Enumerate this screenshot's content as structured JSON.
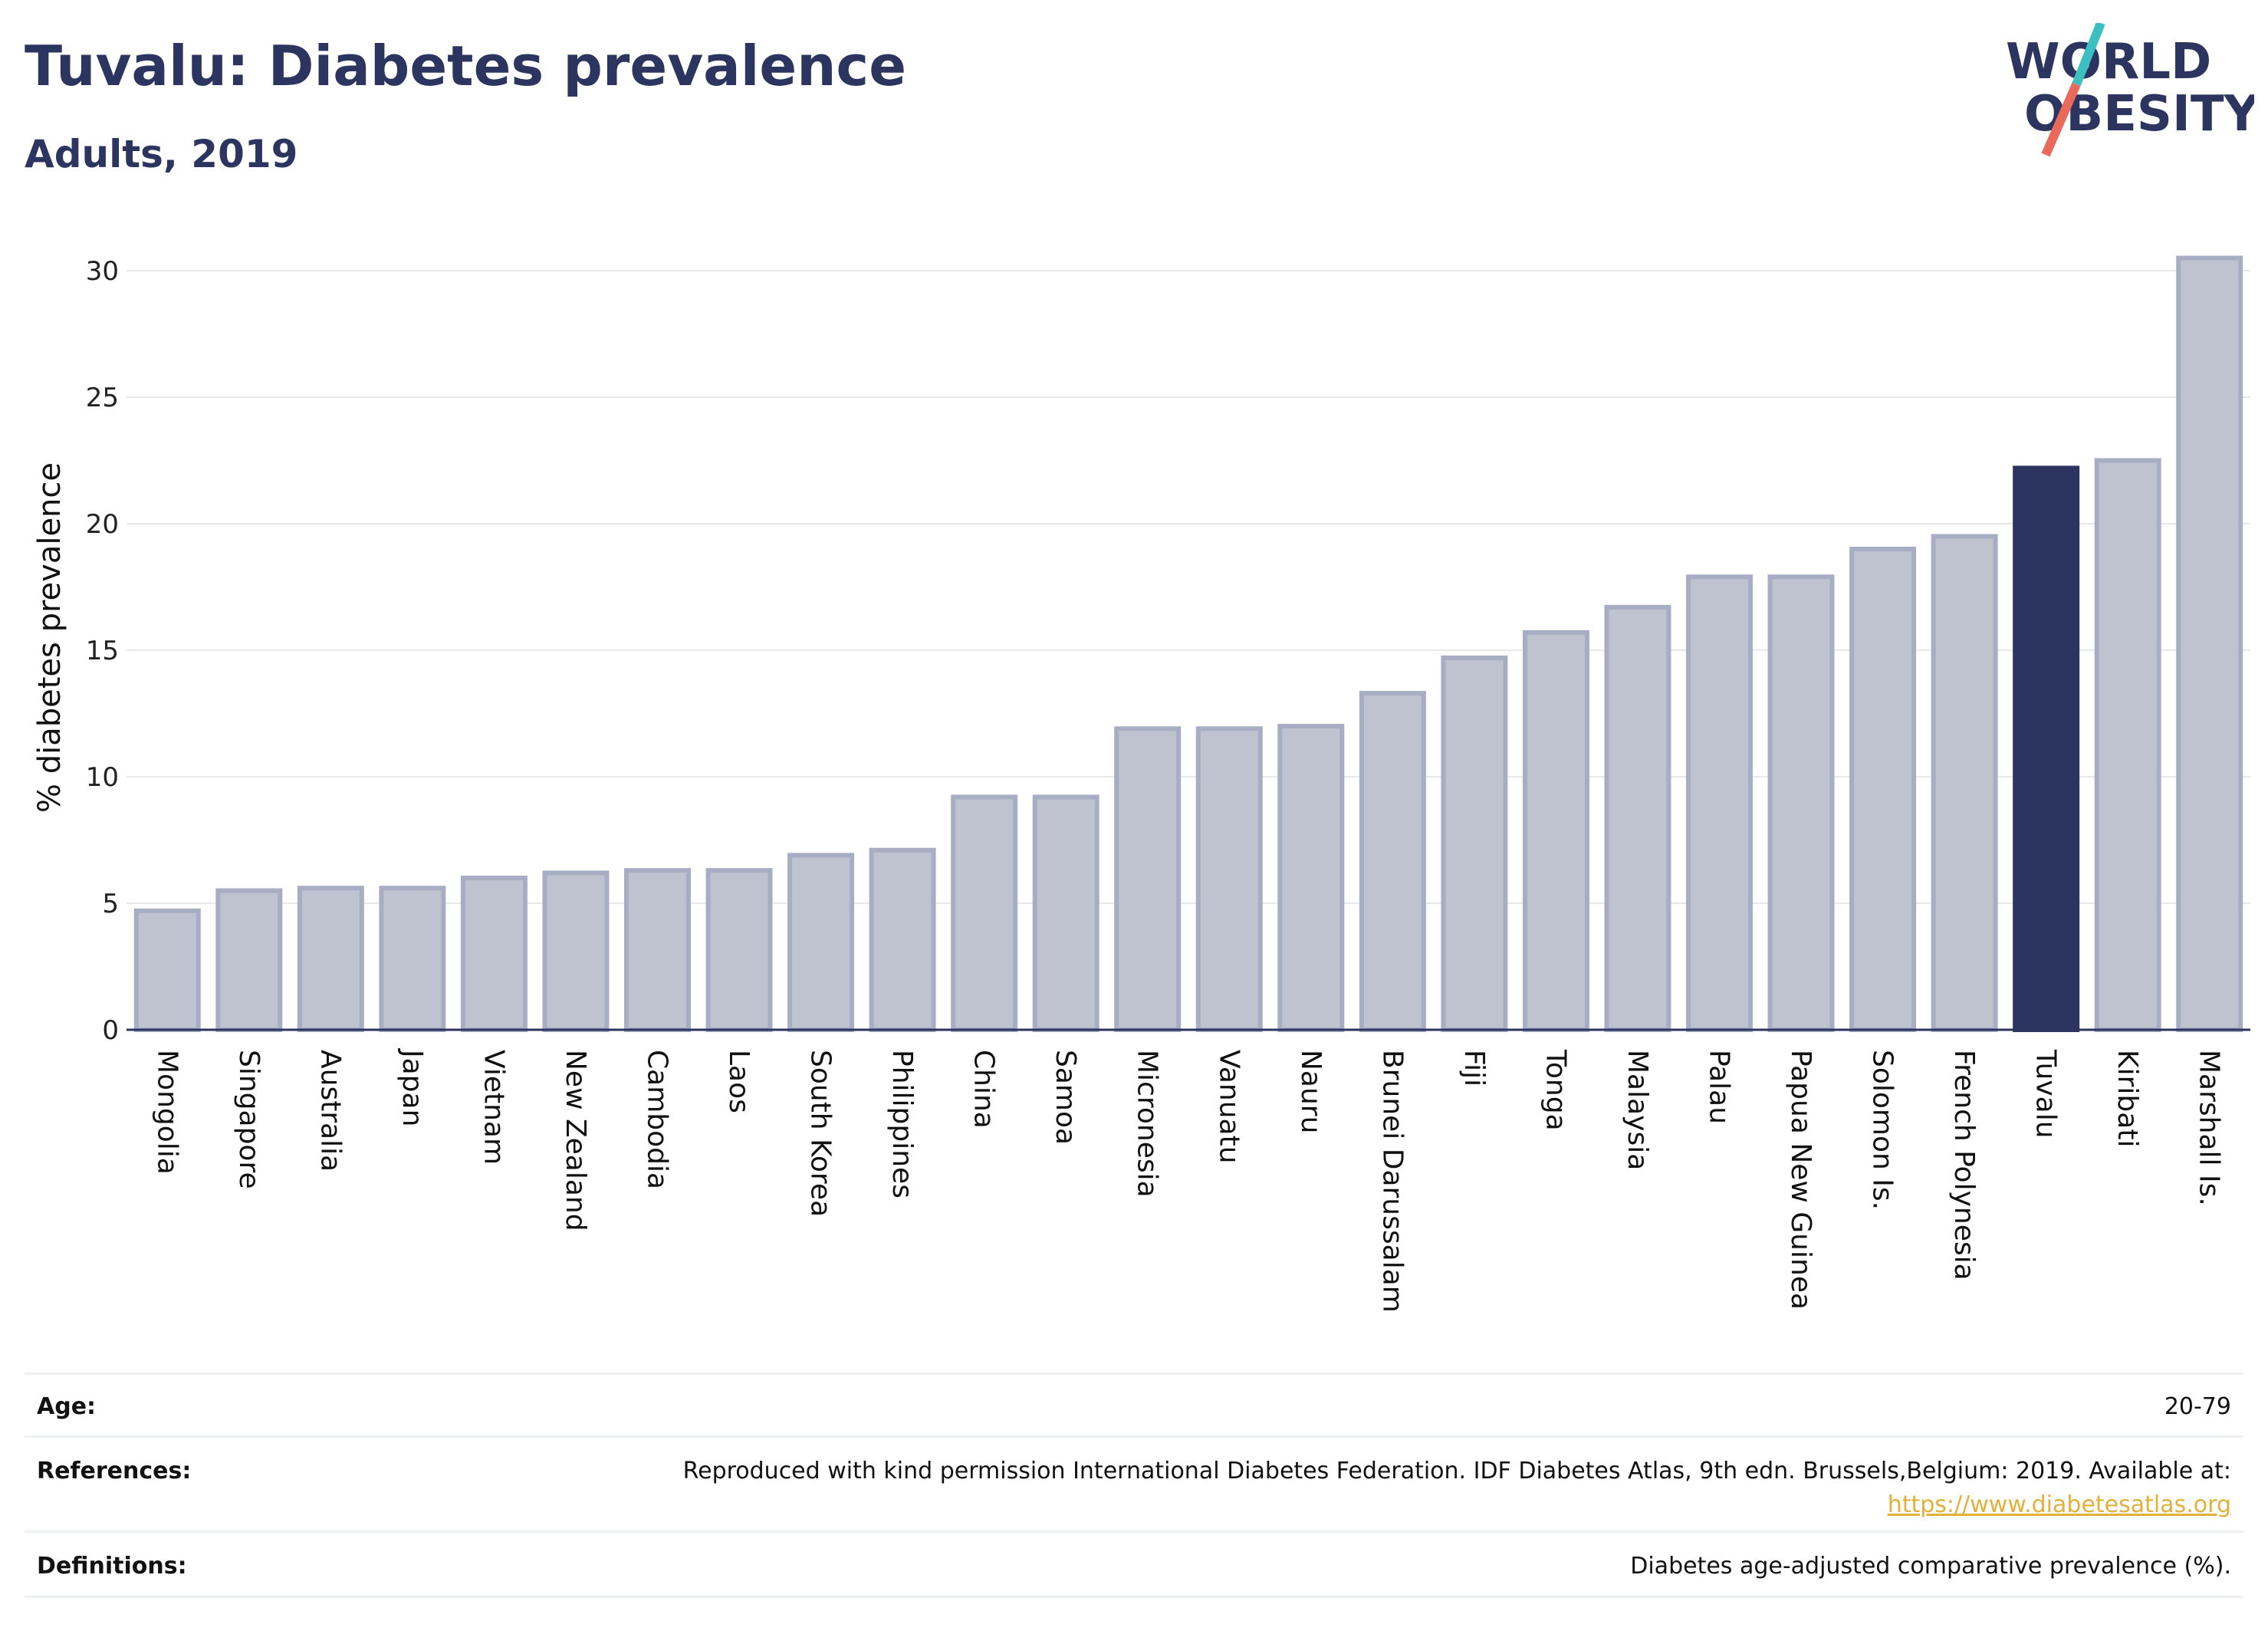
{
  "header": {
    "title": "Tuvalu: Diabetes prevalence",
    "subtitle": "Adults, 2019"
  },
  "logo": {
    "line1": "WORLD",
    "line2": "OBESITY",
    "slash_colors": [
      "#3bbfc0",
      "#e96a5b"
    ],
    "text_color": "#2b3560"
  },
  "chart_data": {
    "type": "bar",
    "ylabel": "% diabetes prevalence",
    "xlabel": "",
    "ylim": [
      0,
      31
    ],
    "yticks": [
      0,
      5,
      10,
      15,
      20,
      25,
      30
    ],
    "grid": true,
    "highlight": "Tuvalu",
    "colors": {
      "bar": "#bfc3d0",
      "bar_edge": "#a7adc2",
      "highlight": "#2b3560",
      "grid": "#e6e8ec",
      "axis": "#2b3560"
    },
    "categories": [
      "Mongolia",
      "Singapore",
      "Australia",
      "Japan",
      "Vietnam",
      "New Zealand",
      "Cambodia",
      "Laos",
      "South Korea",
      "Philippines",
      "China",
      "Samoa",
      "Micronesia",
      "Vanuatu",
      "Nauru",
      "Brunei Darussalam",
      "Fiji",
      "Tonga",
      "Malaysia",
      "Palau",
      "Papua New Guinea",
      "Solomon Is.",
      "French Polynesia",
      "Tuvalu",
      "Kiribati",
      "Marshall Is."
    ],
    "values": [
      4.7,
      5.5,
      5.6,
      5.6,
      6.0,
      6.2,
      6.3,
      6.3,
      6.9,
      7.1,
      9.2,
      9.2,
      11.9,
      11.9,
      12.0,
      13.3,
      14.7,
      15.7,
      16.7,
      17.9,
      17.9,
      19.0,
      19.5,
      22.2,
      22.5,
      30.5
    ]
  },
  "meta": {
    "age_label": "Age:",
    "age_value": "20-79",
    "references_label": "References:",
    "references_text": "Reproduced with kind permission International Diabetes Federation. IDF Diabetes Atlas, 9th edn. Brussels,Belgium: 2019. Available at:",
    "references_link": "https://www.diabetesatlas.org",
    "definitions_label": "Definitions:",
    "definitions_value": "Diabetes age-adjusted comparative prevalence (%)."
  }
}
